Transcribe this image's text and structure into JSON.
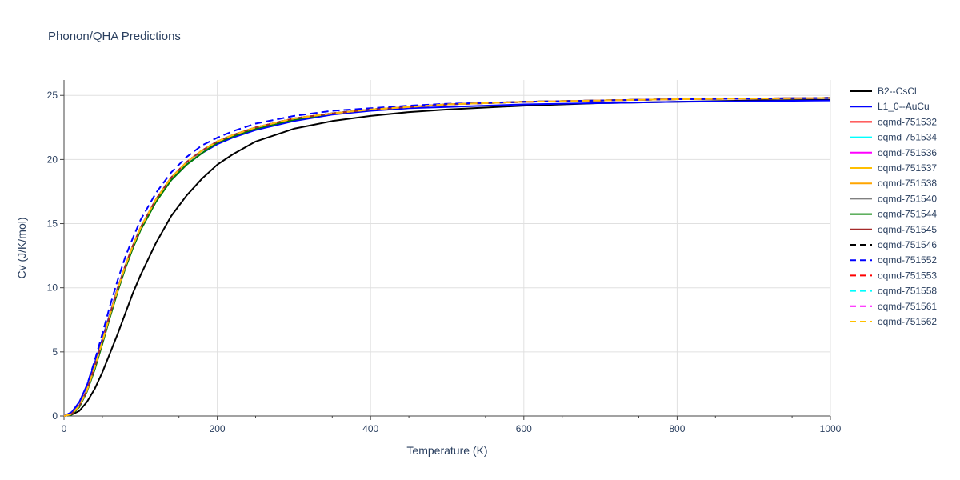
{
  "chart_data": {
    "type": "line",
    "title": "Phonon/QHA Predictions",
    "xlabel": "Temperature (K)",
    "ylabel": "Cv (J/K/mol)",
    "xlim": [
      0,
      1000
    ],
    "ylim": [
      0,
      26.2
    ],
    "x_ticks": [
      0,
      200,
      400,
      600,
      800,
      1000
    ],
    "y_ticks": [
      0,
      5,
      10,
      15,
      20,
      25
    ],
    "grid": true,
    "legend_position": "right",
    "x": [
      0,
      10,
      20,
      30,
      40,
      50,
      60,
      70,
      80,
      90,
      100,
      120,
      140,
      160,
      180,
      200,
      220,
      250,
      300,
      350,
      400,
      450,
      500,
      600,
      700,
      800,
      900,
      1000
    ],
    "series": [
      {
        "name": "B2--CsCl",
        "color": "#000000",
        "dash": "solid",
        "values": [
          0,
          0.1,
          0.4,
          1.1,
          2.1,
          3.4,
          4.9,
          6.4,
          8.0,
          9.6,
          11.0,
          13.5,
          15.6,
          17.2,
          18.5,
          19.6,
          20.4,
          21.4,
          22.4,
          23.0,
          23.4,
          23.7,
          23.9,
          24.2,
          24.4,
          24.5,
          24.6,
          24.65
        ]
      },
      {
        "name": "L1_0--AuCu",
        "color": "#0000ff",
        "dash": "solid",
        "values": [
          0,
          0.3,
          1.1,
          2.4,
          4.1,
          6.0,
          8.0,
          10.0,
          11.7,
          13.2,
          14.6,
          16.8,
          18.4,
          19.6,
          20.5,
          21.2,
          21.7,
          22.3,
          23.0,
          23.5,
          23.8,
          24.0,
          24.1,
          24.3,
          24.4,
          24.5,
          24.55,
          24.6
        ]
      },
      {
        "name": "oqmd-751532",
        "color": "#ff0000",
        "dash": "solid",
        "values": [
          0,
          0.15,
          0.8,
          2.0,
          3.8,
          5.8,
          7.9,
          9.9,
          11.7,
          13.3,
          14.7,
          16.9,
          18.6,
          19.8,
          20.7,
          21.4,
          21.9,
          22.5,
          23.2,
          23.6,
          23.9,
          24.1,
          24.3,
          24.5,
          24.6,
          24.7,
          24.75,
          24.8
        ]
      },
      {
        "name": "oqmd-751534",
        "color": "#00ffff",
        "dash": "solid",
        "values": [
          0,
          0.15,
          0.8,
          2.0,
          3.8,
          5.8,
          7.9,
          9.9,
          11.7,
          13.3,
          14.7,
          16.9,
          18.6,
          19.8,
          20.7,
          21.4,
          21.9,
          22.5,
          23.2,
          23.6,
          23.9,
          24.1,
          24.3,
          24.5,
          24.6,
          24.7,
          24.75,
          24.8
        ]
      },
      {
        "name": "oqmd-751536",
        "color": "#ff00ff",
        "dash": "solid",
        "values": [
          0,
          0.15,
          0.8,
          2.0,
          3.8,
          5.8,
          7.9,
          9.9,
          11.7,
          13.3,
          14.7,
          16.9,
          18.6,
          19.8,
          20.7,
          21.4,
          21.9,
          22.5,
          23.2,
          23.6,
          23.9,
          24.1,
          24.3,
          24.5,
          24.6,
          24.7,
          24.75,
          24.8
        ]
      },
      {
        "name": "oqmd-751537",
        "color": "#ffbf00",
        "dash": "solid",
        "values": [
          0,
          0.15,
          0.8,
          2.0,
          3.8,
          5.8,
          7.9,
          9.9,
          11.7,
          13.3,
          14.7,
          16.9,
          18.6,
          19.8,
          20.7,
          21.4,
          21.9,
          22.5,
          23.2,
          23.6,
          23.9,
          24.1,
          24.3,
          24.5,
          24.6,
          24.7,
          24.75,
          24.8
        ]
      },
      {
        "name": "oqmd-751538",
        "color": "#ffa500",
        "dash": "solid",
        "values": [
          0,
          0.15,
          0.8,
          2.0,
          3.8,
          5.8,
          7.9,
          9.9,
          11.7,
          13.3,
          14.7,
          16.9,
          18.6,
          19.8,
          20.7,
          21.4,
          21.9,
          22.5,
          23.2,
          23.6,
          23.9,
          24.1,
          24.3,
          24.5,
          24.6,
          24.7,
          24.75,
          24.8
        ]
      },
      {
        "name": "oqmd-751540",
        "color": "#808080",
        "dash": "solid",
        "values": [
          0,
          0.15,
          0.8,
          2.0,
          3.8,
          5.8,
          7.9,
          9.9,
          11.7,
          13.3,
          14.7,
          16.9,
          18.6,
          19.8,
          20.7,
          21.4,
          21.9,
          22.5,
          23.2,
          23.6,
          23.9,
          24.1,
          24.3,
          24.5,
          24.6,
          24.7,
          24.75,
          24.8
        ]
      },
      {
        "name": "oqmd-751544",
        "color": "#008000",
        "dash": "solid",
        "values": [
          0,
          0.1,
          0.7,
          1.9,
          3.6,
          5.6,
          7.7,
          9.7,
          11.5,
          13.1,
          14.5,
          16.7,
          18.4,
          19.6,
          20.5,
          21.3,
          21.8,
          22.4,
          23.1,
          23.6,
          23.9,
          24.1,
          24.3,
          24.5,
          24.6,
          24.7,
          24.75,
          24.8
        ]
      },
      {
        "name": "oqmd-751545",
        "color": "#a52a2a",
        "dash": "solid",
        "values": [
          0,
          0.15,
          0.8,
          2.0,
          3.8,
          5.8,
          7.9,
          9.9,
          11.7,
          13.3,
          14.7,
          16.9,
          18.6,
          19.8,
          20.7,
          21.4,
          21.9,
          22.5,
          23.2,
          23.6,
          23.9,
          24.1,
          24.3,
          24.5,
          24.6,
          24.7,
          24.75,
          24.8
        ]
      },
      {
        "name": "oqmd-751546",
        "color": "#000000",
        "dash": "dash",
        "values": [
          0,
          0.15,
          0.8,
          2.0,
          3.8,
          5.8,
          7.9,
          9.9,
          11.7,
          13.3,
          14.7,
          16.9,
          18.6,
          19.8,
          20.7,
          21.4,
          21.9,
          22.5,
          23.2,
          23.6,
          23.9,
          24.1,
          24.3,
          24.5,
          24.6,
          24.7,
          24.75,
          24.8
        ]
      },
      {
        "name": "oqmd-751552",
        "color": "#0000ff",
        "dash": "dash",
        "values": [
          0,
          0.2,
          1.0,
          2.4,
          4.3,
          6.4,
          8.6,
          10.6,
          12.4,
          13.9,
          15.3,
          17.4,
          19.0,
          20.2,
          21.1,
          21.7,
          22.2,
          22.8,
          23.4,
          23.8,
          24.0,
          24.2,
          24.35,
          24.5,
          24.6,
          24.7,
          24.75,
          24.8
        ]
      },
      {
        "name": "oqmd-751553",
        "color": "#ff0000",
        "dash": "dash",
        "values": [
          0,
          0.15,
          0.8,
          2.0,
          3.8,
          5.8,
          7.9,
          9.9,
          11.7,
          13.3,
          14.7,
          16.9,
          18.6,
          19.8,
          20.7,
          21.4,
          21.9,
          22.5,
          23.2,
          23.6,
          23.9,
          24.1,
          24.3,
          24.5,
          24.6,
          24.7,
          24.75,
          24.8
        ]
      },
      {
        "name": "oqmd-751558",
        "color": "#00ffff",
        "dash": "dash",
        "values": [
          0,
          0.15,
          0.8,
          2.0,
          3.8,
          5.8,
          7.9,
          9.9,
          11.7,
          13.3,
          14.7,
          16.9,
          18.6,
          19.8,
          20.7,
          21.4,
          21.9,
          22.5,
          23.2,
          23.6,
          23.9,
          24.1,
          24.3,
          24.5,
          24.6,
          24.7,
          24.75,
          24.8
        ]
      },
      {
        "name": "oqmd-751561",
        "color": "#ff00ff",
        "dash": "dash",
        "values": [
          0,
          0.15,
          0.8,
          2.0,
          3.8,
          5.8,
          7.9,
          9.9,
          11.7,
          13.3,
          14.7,
          16.9,
          18.6,
          19.8,
          20.7,
          21.4,
          21.9,
          22.5,
          23.2,
          23.6,
          23.9,
          24.1,
          24.3,
          24.5,
          24.6,
          24.7,
          24.75,
          24.8
        ]
      },
      {
        "name": "oqmd-751562",
        "color": "#ffbf00",
        "dash": "dash",
        "values": [
          0,
          0.15,
          0.8,
          2.0,
          3.8,
          5.8,
          7.9,
          9.9,
          11.7,
          13.3,
          14.7,
          16.9,
          18.6,
          19.8,
          20.7,
          21.4,
          21.9,
          22.5,
          23.2,
          23.6,
          23.9,
          24.1,
          24.3,
          24.5,
          24.6,
          24.7,
          24.75,
          24.8
        ]
      }
    ]
  }
}
